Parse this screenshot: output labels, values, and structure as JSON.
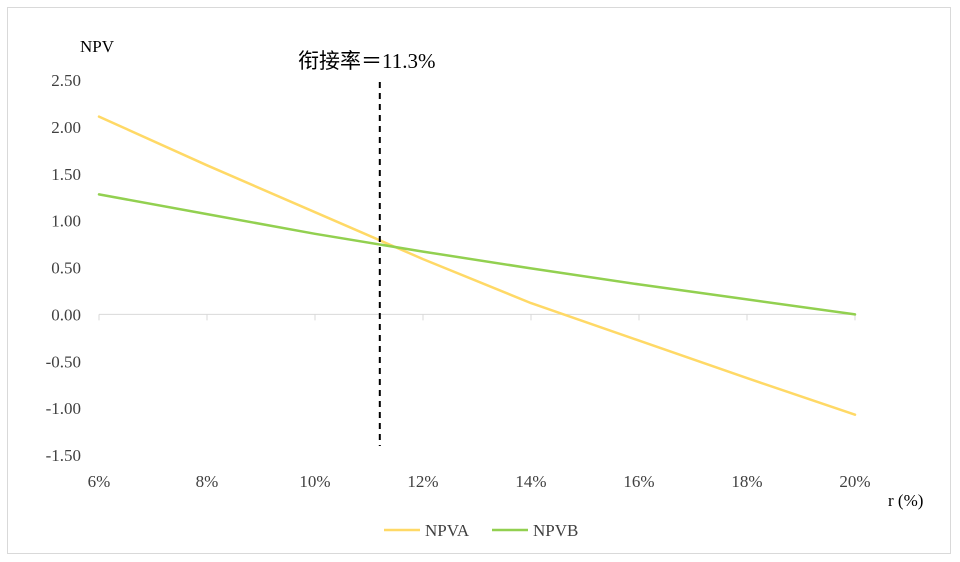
{
  "chart_data": {
    "type": "line",
    "title": "",
    "xlabel": "r (%)",
    "ylabel": "NPV",
    "x_tick_labels": [
      "6%",
      "8%",
      "10%",
      "12%",
      "14%",
      "16%",
      "18%",
      "20%"
    ],
    "y_tick_labels": [
      "2.50",
      "2.00",
      "1.50",
      "1.00",
      "0.50",
      "0.00",
      "-0.50",
      "-1.00",
      "-1.50"
    ],
    "xlim": [
      6,
      20
    ],
    "ylim": [
      -1.5,
      2.5
    ],
    "x": [
      6,
      8,
      10,
      12,
      14,
      16,
      18,
      20
    ],
    "series": [
      {
        "name": "NPVA",
        "color": "#ffd966",
        "values": [
          2.11,
          1.59,
          1.09,
          0.59,
          0.12,
          -0.28,
          -0.68,
          -1.07
        ]
      },
      {
        "name": "NPVB",
        "color": "#92d050",
        "values": [
          1.28,
          1.07,
          0.86,
          0.67,
          0.49,
          0.32,
          0.16,
          0.0
        ]
      }
    ],
    "annotations": [
      {
        "text": "衔接率＝11.3%",
        "x": 11.2,
        "style": "dashed-vertical-line"
      }
    ],
    "legend": {
      "position": "bottom"
    },
    "grid": false
  }
}
